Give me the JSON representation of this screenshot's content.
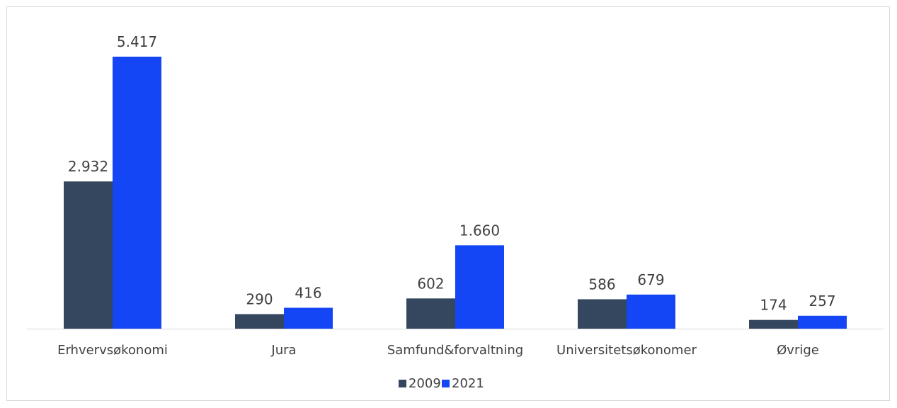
{
  "chart_data": {
    "type": "bar",
    "title": "",
    "xlabel": "",
    "ylabel": "",
    "categories": [
      "Erhvervsøkonomi",
      "Jura",
      "Samfund&forvaltning",
      "Universitetsøkonomer",
      "Øvrige"
    ],
    "series": [
      {
        "name": "2009",
        "color": "#35475f",
        "values": [
          2932,
          290,
          602,
          586,
          174
        ],
        "labels": [
          "2.932",
          "290",
          "602",
          "586",
          "174"
        ]
      },
      {
        "name": "2021",
        "color": "#1446f5",
        "values": [
          5417,
          416,
          1660,
          679,
          257
        ],
        "labels": [
          "5.417",
          "416",
          "1.660",
          "679",
          "257"
        ]
      }
    ],
    "ylim": [
      0,
      5600
    ],
    "grid": false,
    "legend": "bottom"
  }
}
